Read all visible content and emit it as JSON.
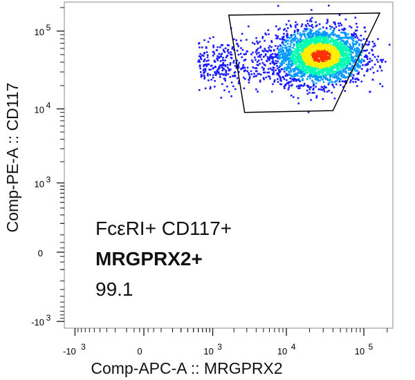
{
  "chart_data": {
    "type": "scatter",
    "subtype": "flow-cytometry-density-dot-plot",
    "xlabel": "Comp-APC-A :: MRGPRX2",
    "ylabel": "Comp-PE-A :: CD117",
    "x_scale": "biexponential",
    "y_scale": "biexponential",
    "x_ticks": [
      {
        "label": "-10",
        "exp": "3",
        "value": -1000
      },
      {
        "label": "0",
        "exp": "",
        "value": 0
      },
      {
        "label": "10",
        "exp": "3",
        "value": 1000
      },
      {
        "label": "10",
        "exp": "4",
        "value": 10000
      },
      {
        "label": "10",
        "exp": "5",
        "value": 100000
      }
    ],
    "y_ticks": [
      {
        "label": "-10",
        "exp": "3",
        "value": -1000
      },
      {
        "label": "0",
        "exp": "",
        "value": 0
      },
      {
        "label": "10",
        "exp": "3",
        "value": 1000
      },
      {
        "label": "10",
        "exp": "4",
        "value": 10000
      },
      {
        "label": "10",
        "exp": "5",
        "value": 100000
      }
    ],
    "gate": {
      "name_line1": "FcεRI+ CD117+",
      "name_line2": "MRGPRX2+",
      "percent": "99.1",
      "vertices": [
        [
          1700,
          160000
        ],
        [
          160000,
          170000
        ],
        [
          40000,
          9500
        ],
        [
          2800,
          9000
        ]
      ]
    },
    "population": {
      "center": [
        28000,
        48000
      ],
      "spread_decades": [
        0.28,
        0.18
      ],
      "tail_to": [
        600,
        40000
      ]
    },
    "colormap": [
      "#1a1aff",
      "#0099ff",
      "#00ffb0",
      "#ffee00",
      "#ff3300"
    ]
  }
}
